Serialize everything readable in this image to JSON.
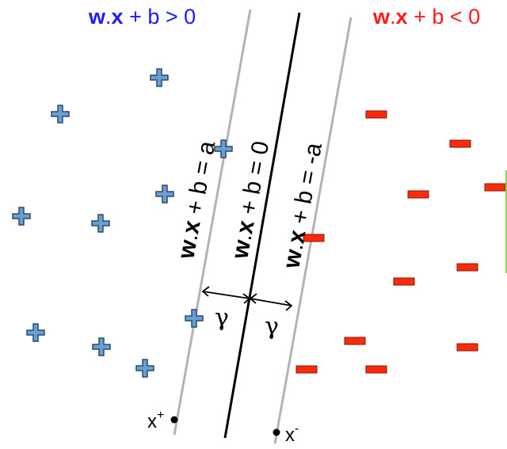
{
  "headers": {
    "positive": {
      "bold": "w",
      "dot": ".",
      "bold2": "x",
      "rest": " + b > 0",
      "color": "#1a1aff"
    },
    "negative": {
      "bold": "w",
      "dot": ".",
      "bold2": "x",
      "rest": " + b < 0",
      "color": "#ff1a1a"
    }
  },
  "lines": {
    "plus_margin": {
      "bold": "w",
      "dot": ".",
      "bold2": "x",
      "rest": " + b = a"
    },
    "decision": {
      "bold": "w",
      "dot": ".",
      "bold2": "x",
      "rest": " + b = 0"
    },
    "minus_margin": {
      "bold": "w",
      "dot": ".",
      "bold2": "x",
      "rest": " + b = -a"
    }
  },
  "margins": {
    "left_label": "γ",
    "right_label": "γ"
  },
  "support_points": {
    "plus": {
      "base": "x",
      "sup": "+"
    },
    "minus": {
      "base": "x",
      "sup": "-"
    }
  },
  "colors": {
    "plus_fill": "#6a9fd2",
    "plus_stroke": "#2a4a6c",
    "minus_fill": "#ff2a0a",
    "minus_stroke": "#7a1a0a",
    "margin_line": "#b3b3b3",
    "decision_line": "#000000"
  }
}
